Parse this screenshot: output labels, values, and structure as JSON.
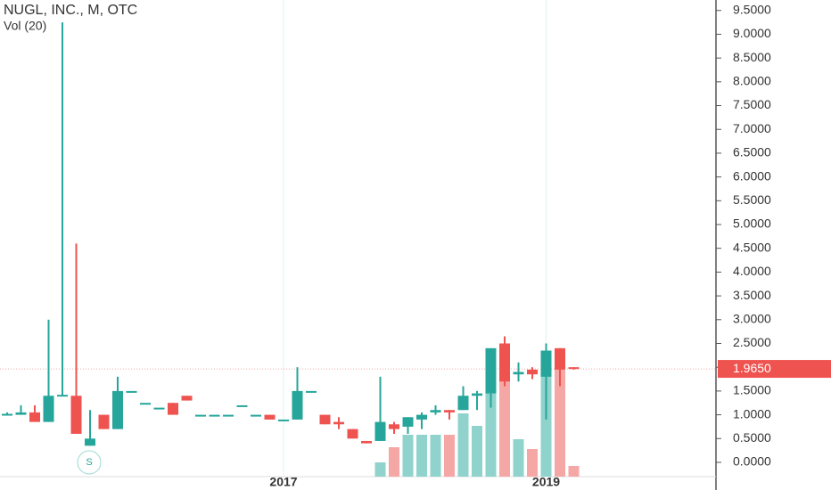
{
  "chart_data": {
    "type": "candlestick",
    "title": "NUGL, INC., M, OTC",
    "subtitle": "Vol (20)",
    "categories": [
      null,
      null,
      null,
      null,
      null,
      null,
      null,
      null,
      null,
      null,
      null,
      null,
      null,
      null,
      null,
      null,
      null,
      null,
      null,
      null,
      "2017",
      null,
      null,
      null,
      null,
      null,
      null,
      null,
      null,
      null,
      null,
      null,
      null,
      null,
      null,
      null,
      null,
      null,
      null,
      "2019",
      null,
      null
    ],
    "open": [
      1.0,
      1.0,
      1.05,
      0.85,
      1.4,
      1.4,
      0.35,
      1.0,
      0.7,
      1.5,
      1.25,
      1.15,
      1.25,
      1.4,
      1.0,
      1.0,
      1.0,
      1.2,
      1.0,
      1.0,
      0.9,
      0.9,
      1.5,
      1.0,
      0.85,
      0.7,
      0.45,
      0.45,
      0.8,
      0.75,
      0.9,
      1.05,
      1.1,
      1.1,
      1.4,
      1.45,
      2.5,
      1.85,
      1.95,
      1.8,
      2.4,
      2.0
    ],
    "high": [
      1.05,
      1.2,
      1.2,
      3.0,
      9.25,
      4.6,
      1.1,
      1.0,
      1.8,
      1.5,
      1.25,
      1.15,
      1.25,
      1.4,
      1.0,
      1.0,
      1.0,
      1.2,
      1.0,
      1.0,
      0.9,
      2.0,
      1.5,
      1.0,
      0.95,
      0.7,
      0.45,
      1.8,
      0.85,
      0.95,
      1.05,
      1.2,
      1.1,
      1.6,
      1.5,
      2.4,
      2.65,
      2.1,
      2.0,
      2.5,
      2.4,
      2.0
    ],
    "low": [
      1.0,
      1.0,
      0.85,
      0.85,
      1.4,
      0.6,
      0.35,
      0.7,
      0.7,
      1.5,
      1.25,
      1.15,
      1.0,
      1.3,
      1.0,
      1.0,
      1.0,
      1.2,
      1.0,
      0.9,
      0.9,
      0.9,
      1.5,
      0.8,
      0.7,
      0.5,
      0.4,
      0.45,
      0.6,
      0.6,
      0.7,
      1.0,
      0.9,
      1.1,
      1.1,
      1.15,
      1.6,
      1.7,
      1.75,
      0.9,
      1.6,
      1.95
    ],
    "close": [
      1.02,
      1.05,
      0.85,
      1.4,
      1.42,
      0.6,
      0.5,
      0.7,
      1.5,
      1.5,
      1.25,
      1.15,
      1.0,
      1.3,
      1.0,
      1.0,
      1.0,
      1.2,
      1.0,
      0.9,
      0.9,
      1.5,
      1.5,
      0.8,
      0.8,
      0.5,
      0.4,
      0.85,
      0.7,
      0.95,
      1.0,
      1.1,
      1.05,
      1.4,
      1.45,
      2.4,
      1.7,
      1.9,
      1.85,
      2.35,
      1.95,
      1.965
    ],
    "volume": [
      null,
      null,
      null,
      null,
      null,
      null,
      null,
      null,
      null,
      null,
      null,
      null,
      null,
      null,
      null,
      null,
      null,
      null,
      null,
      null,
      null,
      null,
      null,
      null,
      null,
      null,
      null,
      16,
      33,
      47,
      47,
      47,
      47,
      71,
      57,
      95,
      107,
      42,
      31,
      135,
      125,
      12
    ],
    "vlim": [
      0,
      200
    ],
    "up_color": "#26a69a",
    "down_color": "#ef5350",
    "volume_up_color": "#8fd3cc",
    "volume_down_color": "#f5a7a6",
    "ylim": [
      -0.3,
      9.72
    ],
    "yticks": [
      {
        "value": 0,
        "label": "0.0000"
      },
      {
        "value": 0.5,
        "label": "0.5000"
      },
      {
        "value": 1,
        "label": "1.0000"
      },
      {
        "value": 1.5,
        "label": "1.5000"
      },
      {
        "value": 2,
        "label": "2.0000"
      },
      {
        "value": 2.5,
        "label": "2.5000"
      },
      {
        "value": 3,
        "label": "3.0000"
      },
      {
        "value": 3.5,
        "label": "3.5000"
      },
      {
        "value": 4,
        "label": "4.0000"
      },
      {
        "value": 4.5,
        "label": "4.5000"
      },
      {
        "value": 5,
        "label": "5.0000"
      },
      {
        "value": 5.5,
        "label": "5.5000"
      },
      {
        "value": 6,
        "label": "6.0000"
      },
      {
        "value": 6.5,
        "label": "6.5000"
      },
      {
        "value": 7,
        "label": "7.0000"
      },
      {
        "value": 7.5,
        "label": "7.5000"
      },
      {
        "value": 8,
        "label": "8.0000"
      },
      {
        "value": 8.5,
        "label": "8.5000"
      },
      {
        "value": 9,
        "label": "9.0000"
      },
      {
        "value": 9.5,
        "label": "9.5000"
      }
    ],
    "last_price": {
      "value": 1.965,
      "label": "1.9650"
    },
    "split_marker": "S"
  }
}
